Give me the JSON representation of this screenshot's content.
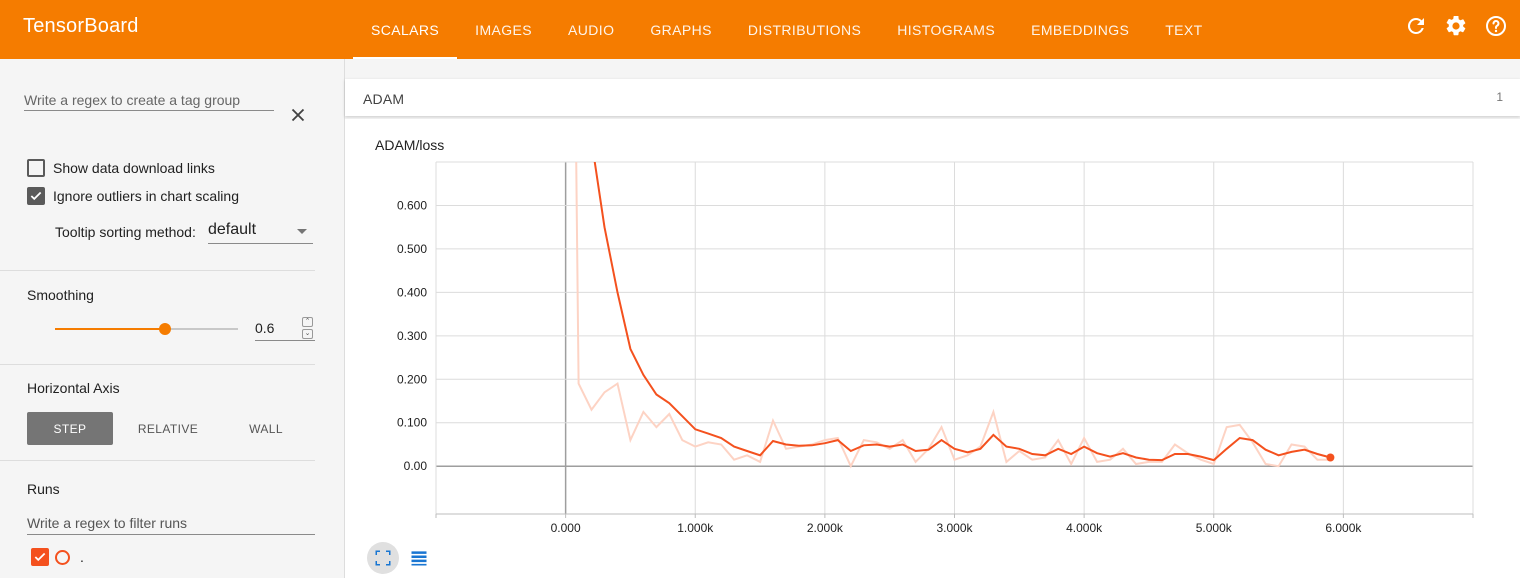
{
  "app": {
    "title": "TensorBoard"
  },
  "tabs": [
    {
      "label": "SCALARS",
      "active": true
    },
    {
      "label": "IMAGES"
    },
    {
      "label": "AUDIO"
    },
    {
      "label": "GRAPHS"
    },
    {
      "label": "DISTRIBUTIONS"
    },
    {
      "label": "HISTOGRAMS"
    },
    {
      "label": "EMBEDDINGS"
    },
    {
      "label": "TEXT"
    }
  ],
  "toolbar_icons": [
    "refresh-icon",
    "settings-gear-icon",
    "help-icon"
  ],
  "sidebar": {
    "tag_group_placeholder": "Write a regex to create a tag group",
    "show_download_links": {
      "label": "Show data download links",
      "checked": false
    },
    "ignore_outliers": {
      "label": "Ignore outliers in chart scaling",
      "checked": true
    },
    "tooltip_sorting": {
      "label": "Tooltip sorting method:",
      "value": "default"
    },
    "smoothing": {
      "title": "Smoothing",
      "value": "0.6",
      "fraction": 0.6
    },
    "horizontal_axis": {
      "title": "Horizontal Axis",
      "options": [
        "STEP",
        "RELATIVE",
        "WALL"
      ],
      "selected": "STEP"
    },
    "runs": {
      "title": "Runs",
      "filter_placeholder": "Write a regex to filter runs",
      "items": [
        {
          "name": ".",
          "checked": true
        }
      ]
    }
  },
  "main": {
    "group": {
      "title": "ADAM",
      "count": "1"
    }
  },
  "colors": {
    "accent": "#f57c00",
    "series": "#f4511e",
    "series_raw": "#fdd3c4"
  },
  "chart_data": {
    "type": "line",
    "title": "ADAM/loss",
    "xlim": [
      -1000,
      7000
    ],
    "ylim": [
      -0.11,
      0.7
    ],
    "x_ticks": [
      0,
      1000,
      2000,
      3000,
      4000,
      5000,
      6000
    ],
    "x_tick_labels": [
      "0.000",
      "1.000k",
      "2.000k",
      "3.000k",
      "4.000k",
      "5.000k",
      "6.000k"
    ],
    "y_ticks": [
      0,
      0.1,
      0.2,
      0.3,
      0.4,
      0.5,
      0.6
    ],
    "y_tick_labels": [
      "0.00",
      "0.100",
      "0.200",
      "0.300",
      "0.400",
      "0.500",
      "0.600"
    ],
    "grid": true,
    "series": [
      {
        "smoothed": true,
        "x": [
          200,
          300,
          400,
          500,
          600,
          700,
          800,
          900,
          1000,
          1100,
          1200,
          1300,
          1400,
          1500,
          1600,
          1700,
          1800,
          1900,
          2000,
          2100,
          2200,
          2300,
          2400,
          2500,
          2600,
          2700,
          2800,
          2900,
          3000,
          3100,
          3200,
          3300,
          3400,
          3500,
          3600,
          3700,
          3800,
          3900,
          4000,
          4100,
          4200,
          4300,
          4400,
          4500,
          4600,
          4700,
          4800,
          4900,
          5000,
          5100,
          5200,
          5300,
          5400,
          5500,
          5600,
          5700,
          5800,
          5900
        ],
        "values": [
          0.75,
          0.55,
          0.4,
          0.27,
          0.21,
          0.165,
          0.145,
          0.115,
          0.085,
          0.075,
          0.065,
          0.045,
          0.035,
          0.025,
          0.058,
          0.05,
          0.047,
          0.048,
          0.053,
          0.06,
          0.035,
          0.048,
          0.05,
          0.045,
          0.05,
          0.035,
          0.038,
          0.06,
          0.04,
          0.032,
          0.04,
          0.072,
          0.045,
          0.04,
          0.028,
          0.025,
          0.04,
          0.028,
          0.045,
          0.03,
          0.022,
          0.03,
          0.02,
          0.015,
          0.014,
          0.028,
          0.028,
          0.022,
          0.014,
          0.04,
          0.065,
          0.06,
          0.038,
          0.025,
          0.033,
          0.038,
          0.028,
          0.02
        ]
      },
      {
        "smoothed": false,
        "x": [
          80,
          100,
          200,
          300,
          400,
          500,
          600,
          700,
          800,
          900,
          1000,
          1100,
          1200,
          1300,
          1400,
          1500,
          1600,
          1700,
          1800,
          1900,
          2000,
          2100,
          2200,
          2300,
          2400,
          2500,
          2600,
          2700,
          2800,
          2900,
          3000,
          3100,
          3200,
          3300,
          3400,
          3500,
          3600,
          3700,
          3800,
          3900,
          4000,
          4100,
          4200,
          4300,
          4400,
          4500,
          4600,
          4700,
          4800,
          4900,
          5000,
          5100,
          5200,
          5300,
          5400,
          5500,
          5600,
          5700,
          5800,
          5900
        ],
        "values": [
          0.75,
          0.19,
          0.13,
          0.17,
          0.19,
          0.06,
          0.125,
          0.09,
          0.12,
          0.06,
          0.045,
          0.055,
          0.05,
          0.015,
          0.025,
          0.01,
          0.105,
          0.04,
          0.045,
          0.05,
          0.06,
          0.065,
          0.0,
          0.06,
          0.055,
          0.04,
          0.06,
          0.01,
          0.04,
          0.09,
          0.015,
          0.025,
          0.045,
          0.125,
          0.01,
          0.035,
          0.015,
          0.02,
          0.06,
          0.005,
          0.065,
          0.01,
          0.015,
          0.04,
          0.005,
          0.01,
          0.01,
          0.05,
          0.03,
          0.015,
          0.005,
          0.09,
          0.095,
          0.055,
          0.005,
          0.0,
          0.05,
          0.045,
          0.015,
          0.015
        ]
      }
    ]
  }
}
